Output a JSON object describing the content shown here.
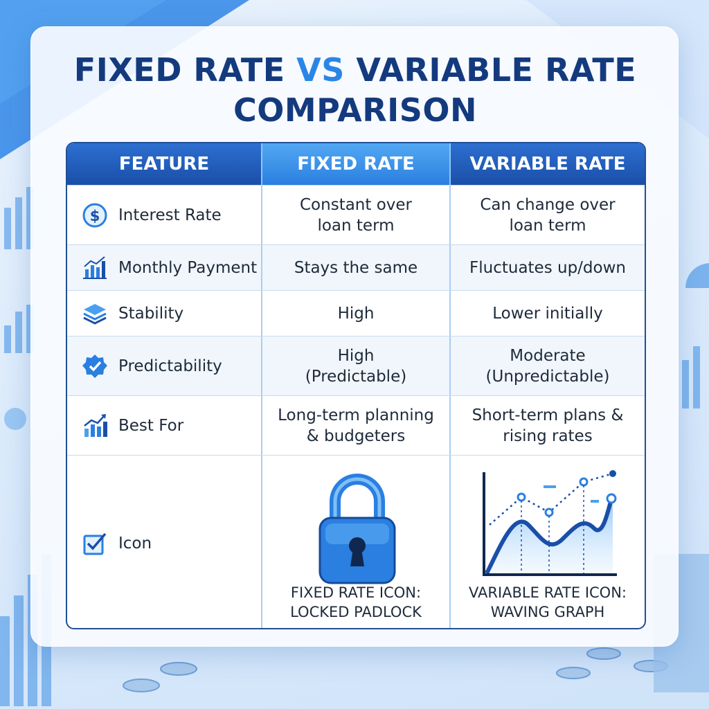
{
  "title": {
    "line1_a": "FIXED RATE ",
    "line1_vs": "VS",
    "line1_b": " VARIABLE RATE",
    "line2": "COMPARISON"
  },
  "table": {
    "headers": [
      "FEATURE",
      "FIXED RATE",
      "VARIABLE RATE"
    ],
    "rows": [
      {
        "feature": "Interest Rate",
        "icon": "dollar-circle-icon",
        "fixed": "Constant over\nloan term",
        "variable": "Can change over\nloan term"
      },
      {
        "feature": "Monthly Payment",
        "icon": "bar-chart-icon",
        "fixed": "Stays the same",
        "variable": "Fluctuates up/down"
      },
      {
        "feature": "Stability",
        "icon": "layers-icon",
        "fixed": "High",
        "variable": "Lower initially"
      },
      {
        "feature": "Predictability",
        "icon": "verified-badge-icon",
        "fixed": "High\n(Predictable)",
        "variable": "Moderate\n(Unpredictable)"
      },
      {
        "feature": "Best For",
        "icon": "growth-chart-icon",
        "fixed": "Long-term planning\n& budgeters",
        "variable": "Short-term plans &\nrising rates"
      },
      {
        "feature": "Icon",
        "icon": "checkbox-icon",
        "fixed_caption": "FIXED RATE ICON:\nLOCKED PADLOCK",
        "variable_caption": "VARIABLE RATE ICON:\nWAVING GRAPH"
      }
    ]
  },
  "colors": {
    "title": "#143a7e",
    "vs_accent": "#2a86e6",
    "header": "#1a4fa8",
    "fixed_header": "#2a7fe0"
  }
}
